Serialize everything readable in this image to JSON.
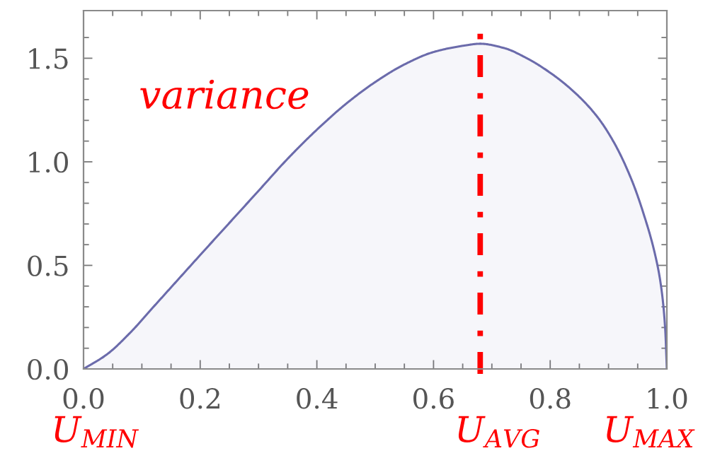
{
  "chart_data": {
    "type": "area",
    "x": [
      0,
      0.04,
      0.08,
      0.12,
      0.16,
      0.2,
      0.25,
      0.3,
      0.35,
      0.4,
      0.45,
      0.5,
      0.55,
      0.6,
      0.65,
      0.68,
      0.72,
      0.76,
      0.8,
      0.84,
      0.88,
      0.91,
      0.94,
      0.96,
      0.98,
      0.99,
      0.997,
      1
    ],
    "series": [
      {
        "color": "#6b6bab",
        "values": [
          0,
          0.07,
          0.175,
          0.3,
          0.425,
          0.55,
          0.705,
          0.86,
          1.015,
          1.155,
          1.28,
          1.385,
          1.47,
          1.53,
          1.56,
          1.57,
          1.55,
          1.5,
          1.43,
          1.34,
          1.22,
          1.09,
          0.91,
          0.75,
          0.55,
          0.4,
          0.2,
          0
        ]
      }
    ],
    "xlim": [
      0,
      1
    ],
    "ylim": [
      0,
      1.73
    ],
    "xticks": [
      {
        "value": 0,
        "label": "0.0"
      },
      {
        "value": 0.05,
        "label": null
      },
      {
        "value": 0.1,
        "label": null
      },
      {
        "value": 0.15,
        "label": null
      },
      0.2,
      {
        "value": 0.25,
        "label": null
      },
      {
        "value": 0.3,
        "label": null
      },
      {
        "value": 0.35,
        "label": null
      },
      0.4,
      {
        "value": 0.45,
        "label": null
      },
      {
        "value": 0.5,
        "label": null
      },
      {
        "value": 0.55,
        "label": null
      },
      0.6,
      {
        "value": 0.65,
        "label": null
      },
      {
        "value": 0.7,
        "label": null
      },
      {
        "value": 0.75,
        "label": null
      },
      0.8,
      {
        "value": 0.85,
        "label": null
      },
      {
        "value": 0.9,
        "label": null
      },
      {
        "value": 0.95,
        "label": null
      },
      {
        "value": 1,
        "label": "1.0"
      }
    ],
    "yticks": [
      {
        "value": 0,
        "label": "0.0"
      },
      {
        "value": 0.1,
        "label": null
      },
      {
        "value": 0.2,
        "label": null
      },
      {
        "value": 0.3,
        "label": null
      },
      {
        "value": 0.4,
        "label": null
      },
      0.5,
      {
        "value": 0.6,
        "label": null
      },
      {
        "value": 0.7,
        "label": null
      },
      {
        "value": 0.8,
        "label": null
      },
      {
        "value": 0.9,
        "label": null
      },
      {
        "value": 1,
        "label": "1.0"
      },
      {
        "value": 1.1,
        "label": null
      },
      {
        "value": 1.2,
        "label": null
      },
      {
        "value": 1.3,
        "label": null
      },
      {
        "value": 1.4,
        "label": null
      },
      1.5,
      {
        "value": 1.6,
        "label": null
      }
    ],
    "ref_lines": [
      {
        "axis": "x",
        "value": 0.68,
        "label": "U$_{AVG}$",
        "color": "#ff0000",
        "line_style": "dashdot"
      }
    ],
    "annotations": [
      "variance",
      {
        "text": "U$_{MIN}$",
        "x": 0,
        "y": 0
      },
      {
        "text": "U$_{MAX}$",
        "x": 1,
        "y": 0
      }
    ]
  }
}
